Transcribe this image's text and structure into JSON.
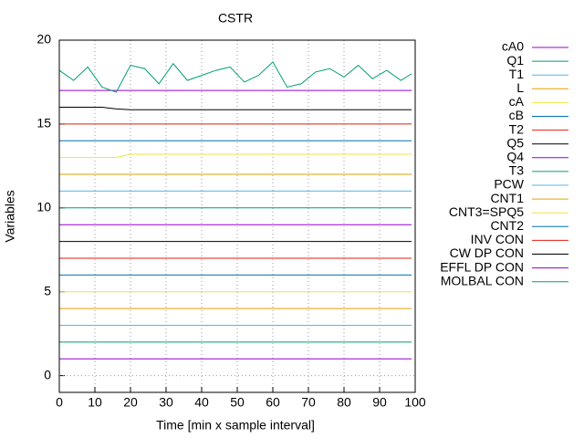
{
  "chart_data": {
    "type": "line",
    "title": "CSTR",
    "xlabel": "Time [min x sample interval]",
    "ylabel": "Variables",
    "x": [
      0,
      4,
      8,
      12,
      16,
      20,
      24,
      28,
      32,
      36,
      40,
      44,
      48,
      52,
      56,
      60,
      64,
      68,
      72,
      76,
      80,
      84,
      88,
      92,
      96,
      99
    ],
    "xlim": [
      0,
      100
    ],
    "xticks": [
      0,
      10,
      20,
      30,
      40,
      50,
      60,
      70,
      80,
      90,
      100
    ],
    "ylim": [
      -1,
      20
    ],
    "yticks": [
      0,
      5,
      10,
      15,
      20
    ],
    "grid": true,
    "legend": "right",
    "series": [
      {
        "name": "cA0",
        "color": "#9400d3",
        "values": [
          17,
          17,
          17,
          17,
          17,
          17,
          17,
          17,
          17,
          17,
          17,
          17,
          17,
          17,
          17,
          17,
          17,
          17,
          17,
          17,
          17,
          17,
          17,
          17,
          17,
          17
        ]
      },
      {
        "name": "Q1",
        "color": "#009e73",
        "values": [
          18.2,
          17.6,
          18.4,
          17.2,
          16.9,
          18.5,
          18.3,
          17.4,
          18.6,
          17.6,
          17.9,
          18.2,
          18.4,
          17.5,
          17.9,
          18.7,
          17.2,
          17.4,
          18.1,
          18.3,
          17.8,
          18.5,
          17.7,
          18.2,
          17.6,
          18.0
        ]
      },
      {
        "name": "T1",
        "color": "#56b4e9",
        "values": [
          11,
          11,
          11,
          11,
          11,
          11,
          11,
          11,
          11,
          11,
          11,
          11,
          11,
          11,
          11,
          11,
          11,
          11,
          11,
          11,
          11,
          11,
          11,
          11,
          11,
          11
        ]
      },
      {
        "name": "L",
        "color": "#e69f00",
        "values": [
          12,
          12,
          12,
          12,
          12,
          12,
          12,
          12,
          12,
          12,
          12,
          12,
          12,
          12,
          12,
          12,
          12,
          12,
          12,
          12,
          12,
          12,
          12,
          12,
          12,
          12
        ]
      },
      {
        "name": "cA",
        "color": "#f0e442",
        "values": [
          13,
          13,
          13,
          13,
          13,
          13.2,
          13.2,
          13.2,
          13.2,
          13.2,
          13.2,
          13.2,
          13.2,
          13.2,
          13.2,
          13.2,
          13.2,
          13.2,
          13.2,
          13.2,
          13.2,
          13.2,
          13.2,
          13.2,
          13.2,
          13.2
        ]
      },
      {
        "name": "cB",
        "color": "#0072b2",
        "values": [
          14,
          14,
          14,
          14,
          14,
          14,
          14,
          14,
          14,
          14,
          14,
          14,
          14,
          14,
          14,
          14,
          14,
          14,
          14,
          14,
          14,
          14,
          14,
          14,
          14,
          14
        ]
      },
      {
        "name": "T2",
        "color": "#e51e10",
        "values": [
          15,
          15,
          15,
          15,
          15,
          15,
          15,
          15,
          15,
          15,
          15,
          15,
          15,
          15,
          15,
          15,
          15,
          15,
          15,
          15,
          15,
          15,
          15,
          15,
          15,
          15
        ]
      },
      {
        "name": "Q5",
        "color": "#000000",
        "values": [
          16,
          16,
          16,
          16,
          15.9,
          15.85,
          15.85,
          15.85,
          15.85,
          15.85,
          15.85,
          15.85,
          15.85,
          15.85,
          15.85,
          15.85,
          15.85,
          15.85,
          15.85,
          15.85,
          15.85,
          15.85,
          15.85,
          15.85,
          15.85,
          15.85
        ]
      },
      {
        "name": "Q4",
        "color": "#9400d3",
        "values": [
          9,
          9,
          9,
          9,
          9,
          9,
          9,
          9,
          9,
          9,
          9,
          9,
          9,
          9,
          9,
          9,
          9,
          9,
          9,
          9,
          9,
          9,
          9,
          9,
          9,
          9
        ]
      },
      {
        "name": "T3",
        "color": "#009e73",
        "values": [
          10,
          10,
          10,
          10,
          10,
          10,
          10,
          10,
          10,
          10,
          10,
          10,
          10,
          10,
          10,
          10,
          10,
          10,
          10,
          10,
          10,
          10,
          10,
          10,
          10,
          10
        ]
      },
      {
        "name": "PCW",
        "color": "#56b4e9",
        "values": [
          3,
          3,
          3,
          3,
          3,
          3,
          3,
          3,
          3,
          3,
          3,
          3,
          3,
          3,
          3,
          3,
          3,
          3,
          3,
          3,
          3,
          3,
          3,
          3,
          3,
          3
        ]
      },
      {
        "name": "CNT1",
        "color": "#e69f00",
        "values": [
          4,
          4,
          4,
          4,
          4,
          4,
          4,
          4,
          4,
          4,
          4,
          4,
          4,
          4,
          4,
          4,
          4,
          4,
          4,
          4,
          4,
          4,
          4,
          4,
          4,
          4
        ]
      },
      {
        "name": "CNT3=SPQ5",
        "color": "#f0e442",
        "values": [
          5,
          5,
          5,
          5,
          5,
          5,
          5,
          5,
          5,
          5,
          5,
          5,
          5,
          5,
          5,
          5,
          5,
          5,
          5,
          5,
          5,
          5,
          5,
          5,
          5,
          5
        ]
      },
      {
        "name": "CNT2",
        "color": "#0072b2",
        "values": [
          6,
          6,
          6,
          6,
          6,
          6,
          6,
          6,
          6,
          6,
          6,
          6,
          6,
          6,
          6,
          6,
          6,
          6,
          6,
          6,
          6,
          6,
          6,
          6,
          6,
          6
        ]
      },
      {
        "name": "INV CON",
        "color": "#e51e10",
        "values": [
          7,
          7,
          7,
          7,
          7,
          7,
          7,
          7,
          7,
          7,
          7,
          7,
          7,
          7,
          7,
          7,
          7,
          7,
          7,
          7,
          7,
          7,
          7,
          7,
          7,
          7
        ]
      },
      {
        "name": "CW DP CON",
        "color": "#000000",
        "values": [
          8,
          8,
          8,
          8,
          8,
          8,
          8,
          8,
          8,
          8,
          8,
          8,
          8,
          8,
          8,
          8,
          8,
          8,
          8,
          8,
          8,
          8,
          8,
          8,
          8,
          8
        ]
      },
      {
        "name": "EFFL DP CON",
        "color": "#9400d3",
        "values": [
          1,
          1,
          1,
          1,
          1,
          1,
          1,
          1,
          1,
          1,
          1,
          1,
          1,
          1,
          1,
          1,
          1,
          1,
          1,
          1,
          1,
          1,
          1,
          1,
          1,
          1
        ]
      },
      {
        "name": "MOLBAL CON",
        "color": "#009e73",
        "values": [
          2,
          2,
          2,
          2,
          2,
          2,
          2,
          2,
          2,
          2,
          2,
          2,
          2,
          2,
          2,
          2,
          2,
          2,
          2,
          2,
          2,
          2,
          2,
          2,
          2,
          2
        ]
      }
    ]
  }
}
